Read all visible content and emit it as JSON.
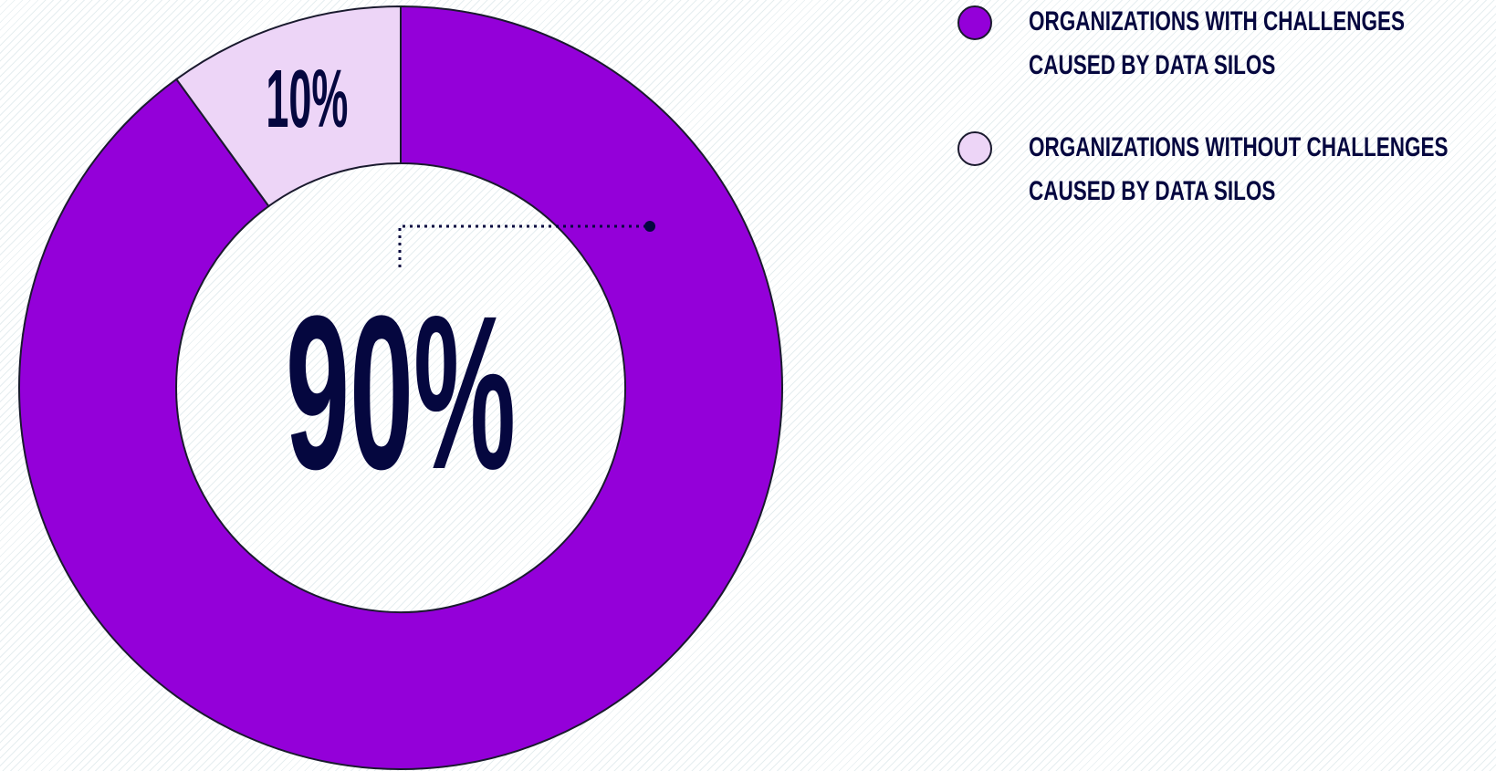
{
  "chart_data": {
    "type": "donut",
    "categories": [
      "ORGANIZATIONS WITH CHALLENGES CAUSED BY DATA SILOS",
      "ORGANIZATIONS WITHOUT CHALLENGES CAUSED BY DATA SILOS"
    ],
    "values": [
      90,
      10
    ],
    "value_labels": [
      "90%",
      "10%"
    ],
    "colors": [
      "#9400d9",
      "#edd5f7"
    ],
    "legend": "top-right"
  }
}
